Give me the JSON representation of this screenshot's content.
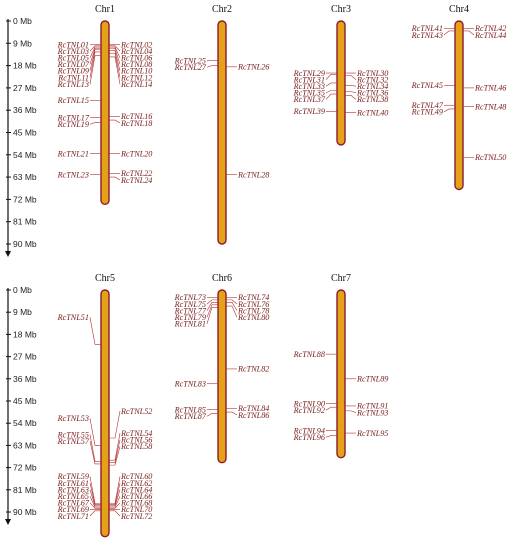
{
  "scale": {
    "unit": "Mb",
    "ticks": [
      {
        "value": 0,
        "label": "0 Mb"
      },
      {
        "value": 9,
        "label": "9 Mb"
      },
      {
        "value": 18,
        "label": "18 Mb"
      },
      {
        "value": 27,
        "label": "27 Mb"
      },
      {
        "value": 36,
        "label": "36 Mb"
      },
      {
        "value": 45,
        "label": "45 Mb"
      },
      {
        "value": 54,
        "label": "54 Mb"
      },
      {
        "value": 63,
        "label": "63 Mb"
      },
      {
        "value": 72,
        "label": "72 Mb"
      },
      {
        "value": 81,
        "label": "81 Mb"
      },
      {
        "value": 90,
        "label": "90 Mb"
      }
    ]
  },
  "colors": {
    "chromosome_fill": "#e3a21a",
    "chromosome_outline": "#8c1c2a",
    "gene_label": "#7a2020",
    "connector": "#b03030"
  },
  "chromosomes": [
    {
      "name": "Chr1",
      "length_mb": 74,
      "genes": [
        {
          "id": "RcTNL01",
          "pos_mb": 9.5,
          "side": "left"
        },
        {
          "id": "RcTNL02",
          "pos_mb": 9.5,
          "side": "right"
        },
        {
          "id": "RcTNL03",
          "pos_mb": 10,
          "side": "left"
        },
        {
          "id": "RcTNL04",
          "pos_mb": 10,
          "side": "right"
        },
        {
          "id": "RcTNL05",
          "pos_mb": 10.5,
          "side": "left"
        },
        {
          "id": "RcTNL06",
          "pos_mb": 10.5,
          "side": "right"
        },
        {
          "id": "RcTNL07",
          "pos_mb": 11,
          "side": "left"
        },
        {
          "id": "RcTNL08",
          "pos_mb": 11,
          "side": "right"
        },
        {
          "id": "RcTNL09",
          "pos_mb": 11.5,
          "side": "left"
        },
        {
          "id": "RcTNL10",
          "pos_mb": 12,
          "side": "right"
        },
        {
          "id": "RcTNL11",
          "pos_mb": 12.5,
          "side": "left"
        },
        {
          "id": "RcTNL12",
          "pos_mb": 13,
          "side": "right"
        },
        {
          "id": "RcTNL13",
          "pos_mb": 14,
          "side": "left"
        },
        {
          "id": "RcTNL14",
          "pos_mb": 14.5,
          "side": "right"
        },
        {
          "id": "RcTNL15",
          "pos_mb": 32,
          "side": "left"
        },
        {
          "id": "RcTNL16",
          "pos_mb": 38.5,
          "side": "right"
        },
        {
          "id": "RcTNL17",
          "pos_mb": 39,
          "side": "left"
        },
        {
          "id": "RcTNL18",
          "pos_mb": 40,
          "side": "right"
        },
        {
          "id": "RcTNL19",
          "pos_mb": 41,
          "side": "left"
        },
        {
          "id": "RcTNL20",
          "pos_mb": 53.5,
          "side": "right"
        },
        {
          "id": "RcTNL21",
          "pos_mb": 53.5,
          "side": "left"
        },
        {
          "id": "RcTNL22",
          "pos_mb": 61.5,
          "side": "right"
        },
        {
          "id": "RcTNL23",
          "pos_mb": 62,
          "side": "left"
        },
        {
          "id": "RcTNL24",
          "pos_mb": 63,
          "side": "right"
        }
      ]
    },
    {
      "name": "Chr2",
      "length_mb": 90,
      "genes": [
        {
          "id": "RcTNL25",
          "pos_mb": 16,
          "side": "left"
        },
        {
          "id": "RcTNL26",
          "pos_mb": 18.5,
          "side": "right"
        },
        {
          "id": "RcTNL27",
          "pos_mb": 18,
          "side": "left"
        },
        {
          "id": "RcTNL28",
          "pos_mb": 62,
          "side": "right"
        }
      ]
    },
    {
      "name": "Chr3",
      "length_mb": 50,
      "genes": [
        {
          "id": "RcTNL29",
          "pos_mb": 21,
          "side": "left"
        },
        {
          "id": "RcTNL30",
          "pos_mb": 21,
          "side": "right"
        },
        {
          "id": "RcTNL31",
          "pos_mb": 21.5,
          "side": "left"
        },
        {
          "id": "RcTNL32",
          "pos_mb": 22,
          "side": "right"
        },
        {
          "id": "RcTNL33",
          "pos_mb": 25,
          "side": "left"
        },
        {
          "id": "RcTNL34",
          "pos_mb": 26,
          "side": "right"
        },
        {
          "id": "RcTNL35",
          "pos_mb": 28,
          "side": "left"
        },
        {
          "id": "RcTNL36",
          "pos_mb": 28.5,
          "side": "right"
        },
        {
          "id": "RcTNL37",
          "pos_mb": 29.5,
          "side": "left"
        },
        {
          "id": "RcTNL38",
          "pos_mb": 30,
          "side": "right"
        },
        {
          "id": "RcTNL39",
          "pos_mb": 36.5,
          "side": "left"
        },
        {
          "id": "RcTNL40",
          "pos_mb": 37,
          "side": "right"
        }
      ]
    },
    {
      "name": "Chr4",
      "length_mb": 68,
      "genes": [
        {
          "id": "RcTNL41",
          "pos_mb": 3,
          "side": "left"
        },
        {
          "id": "RcTNL42",
          "pos_mb": 3,
          "side": "right"
        },
        {
          "id": "RcTNL43",
          "pos_mb": 4,
          "side": "left"
        },
        {
          "id": "RcTNL44",
          "pos_mb": 4,
          "side": "right"
        },
        {
          "id": "RcTNL45",
          "pos_mb": 26,
          "side": "left"
        },
        {
          "id": "RcTNL46",
          "pos_mb": 27,
          "side": "right"
        },
        {
          "id": "RcTNL47",
          "pos_mb": 34,
          "side": "left"
        },
        {
          "id": "RcTNL48",
          "pos_mb": 34.5,
          "side": "right"
        },
        {
          "id": "RcTNL49",
          "pos_mb": 35.5,
          "side": "left"
        },
        {
          "id": "RcTNL50",
          "pos_mb": 55,
          "side": "right"
        }
      ]
    },
    {
      "name": "Chr5",
      "length_mb": 100,
      "genes": [
        {
          "id": "RcTNL51",
          "pos_mb": 22,
          "side": "left"
        },
        {
          "id": "RcTNL52",
          "pos_mb": 60,
          "side": "right"
        },
        {
          "id": "RcTNL53",
          "pos_mb": 63,
          "side": "left"
        },
        {
          "id": "RcTNL54",
          "pos_mb": 69,
          "side": "right"
        },
        {
          "id": "RcTNL55",
          "pos_mb": 69.5,
          "side": "left"
        },
        {
          "id": "RcTNL56",
          "pos_mb": 70,
          "side": "right"
        },
        {
          "id": "RcTNL57",
          "pos_mb": 70.5,
          "side": "left"
        },
        {
          "id": "RcTNL58",
          "pos_mb": 71,
          "side": "right"
        },
        {
          "id": "RcTNL59",
          "pos_mb": 86.5,
          "side": "left"
        },
        {
          "id": "RcTNL60",
          "pos_mb": 86.5,
          "side": "right"
        },
        {
          "id": "RcTNL61",
          "pos_mb": 87,
          "side": "left"
        },
        {
          "id": "RcTNL62",
          "pos_mb": 87,
          "side": "right"
        },
        {
          "id": "RcTNL63",
          "pos_mb": 87.5,
          "side": "left"
        },
        {
          "id": "RcTNL64",
          "pos_mb": 87.5,
          "side": "right"
        },
        {
          "id": "RcTNL65",
          "pos_mb": 88,
          "side": "left"
        },
        {
          "id": "RcTNL66",
          "pos_mb": 88,
          "side": "right"
        },
        {
          "id": "RcTNL67",
          "pos_mb": 88.5,
          "side": "left"
        },
        {
          "id": "RcTNL68",
          "pos_mb": 88.5,
          "side": "right"
        },
        {
          "id": "RcTNL69",
          "pos_mb": 89,
          "side": "left"
        },
        {
          "id": "RcTNL70",
          "pos_mb": 89,
          "side": "right"
        },
        {
          "id": "RcTNL71",
          "pos_mb": 89.5,
          "side": "left"
        },
        {
          "id": "RcTNL72",
          "pos_mb": 89.5,
          "side": "right"
        }
      ]
    },
    {
      "name": "Chr6",
      "length_mb": 70,
      "genes": [
        {
          "id": "RcTNL73",
          "pos_mb": 3,
          "side": "left"
        },
        {
          "id": "RcTNL74",
          "pos_mb": 3,
          "side": "right"
        },
        {
          "id": "RcTNL75",
          "pos_mb": 4,
          "side": "left"
        },
        {
          "id": "RcTNL76",
          "pos_mb": 4,
          "side": "right"
        },
        {
          "id": "RcTNL77",
          "pos_mb": 5,
          "side": "left"
        },
        {
          "id": "RcTNL78",
          "pos_mb": 5,
          "side": "right"
        },
        {
          "id": "RcTNL79",
          "pos_mb": 6,
          "side": "left"
        },
        {
          "id": "RcTNL80",
          "pos_mb": 6.5,
          "side": "right"
        },
        {
          "id": "RcTNL81",
          "pos_mb": 7,
          "side": "left"
        },
        {
          "id": "RcTNL82",
          "pos_mb": 32,
          "side": "right"
        },
        {
          "id": "RcTNL83",
          "pos_mb": 38,
          "side": "left"
        },
        {
          "id": "RcTNL84",
          "pos_mb": 48,
          "side": "right"
        },
        {
          "id": "RcTNL85",
          "pos_mb": 48.5,
          "side": "left"
        },
        {
          "id": "RcTNL86",
          "pos_mb": 49.5,
          "side": "right"
        },
        {
          "id": "RcTNL87",
          "pos_mb": 50,
          "side": "left"
        }
      ]
    },
    {
      "name": "Chr7",
      "length_mb": 68,
      "genes": [
        {
          "id": "RcTNL88",
          "pos_mb": 26,
          "side": "left"
        },
        {
          "id": "RcTNL89",
          "pos_mb": 36,
          "side": "right"
        },
        {
          "id": "RcTNL90",
          "pos_mb": 46,
          "side": "left"
        },
        {
          "id": "RcTNL91",
          "pos_mb": 47,
          "side": "right"
        },
        {
          "id": "RcTNL92",
          "pos_mb": 47.5,
          "side": "left"
        },
        {
          "id": "RcTNL93",
          "pos_mb": 49,
          "side": "right"
        },
        {
          "id": "RcTNL94",
          "pos_mb": 57,
          "side": "left"
        },
        {
          "id": "RcTNL95",
          "pos_mb": 58,
          "side": "right"
        },
        {
          "id": "RcTNL96",
          "pos_mb": 59,
          "side": "left"
        }
      ]
    }
  ]
}
